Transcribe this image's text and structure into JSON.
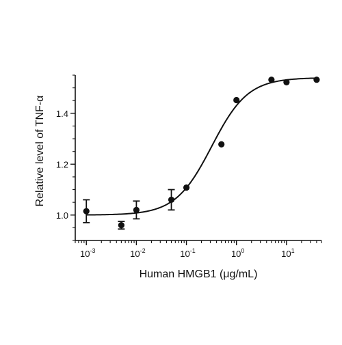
{
  "chart_data": {
    "type": "scatter",
    "title": "",
    "xlabel": "Human HMGB1 (μg/mL)",
    "ylabel": "Relative level of TNF-α",
    "xscale": "log",
    "xlim": [
      0.0006,
      50
    ],
    "ylim": [
      0.9,
      1.55
    ],
    "x_ticks": [
      {
        "value": 0.001,
        "base": "10",
        "exp": "-3"
      },
      {
        "value": 0.01,
        "base": "10",
        "exp": "-2"
      },
      {
        "value": 0.1,
        "base": "10",
        "exp": "-1"
      },
      {
        "value": 1,
        "base": "10",
        "exp": "0"
      },
      {
        "value": 10,
        "base": "10",
        "exp": "1"
      }
    ],
    "y_ticks": [
      {
        "value": 1.0,
        "label": "1.0"
      },
      {
        "value": 1.2,
        "label": "1.2"
      },
      {
        "value": 1.4,
        "label": "1.4"
      }
    ],
    "y_minor_step": 0.05,
    "grid": false,
    "legend": "none",
    "series": [
      {
        "points": [
          {
            "x": 0.001,
            "y": 1.015,
            "err": 0.045
          },
          {
            "x": 0.005,
            "y": 0.96,
            "err": 0.015
          },
          {
            "x": 0.01,
            "y": 1.02,
            "err": 0.035
          },
          {
            "x": 0.05,
            "y": 1.06,
            "err": 0.04
          },
          {
            "x": 0.1,
            "y": 1.108,
            "err": 0
          },
          {
            "x": 0.5,
            "y": 1.278,
            "err": 0
          },
          {
            "x": 1,
            "y": 1.452,
            "err": 0
          },
          {
            "x": 5,
            "y": 1.532,
            "err": 0
          },
          {
            "x": 10,
            "y": 1.522,
            "err": 0
          },
          {
            "x": 40,
            "y": 1.532,
            "err": 0
          }
        ]
      }
    ],
    "fit": {
      "model": "four-parameter logistic",
      "bottom": 1.0,
      "top": 1.54,
      "ec50": 0.32,
      "hill": 1.2,
      "x_range": [
        0.001,
        40
      ]
    },
    "colors": {
      "ink": "#111111",
      "background": "#ffffff"
    }
  }
}
